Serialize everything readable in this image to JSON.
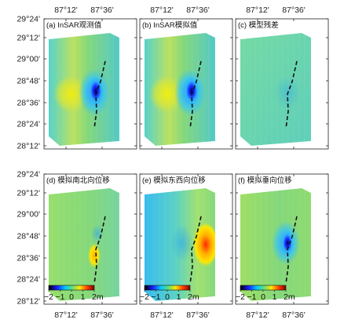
{
  "figure": {
    "x_ticks": [
      "87°12'",
      "87°36'"
    ],
    "y_ticks": [
      "29°24'",
      "29°12'",
      "29°00'",
      "28°48'",
      "28°36'",
      "28°24'",
      "28°12'"
    ],
    "panels": [
      {
        "id": "a",
        "title": "(a) InSAR观测值",
        "signal": "west_negative"
      },
      {
        "id": "b",
        "title": "(b) InSAR模拟值",
        "signal": "west_negative"
      },
      {
        "id": "c",
        "title": "(c) 模型残差",
        "signal": "residual"
      },
      {
        "id": "d",
        "title": "(d) 模拟南北向位移",
        "signal": "north_south"
      },
      {
        "id": "e",
        "title": "(e) 模拟东西向位移",
        "signal": "east_west"
      },
      {
        "id": "f",
        "title": "(f) 模拟垂向位移",
        "signal": "vertical"
      }
    ],
    "colorbar": {
      "tick_labels": [
        "−2",
        "−1",
        "0",
        "1",
        "2m"
      ],
      "range": [
        -2,
        2
      ],
      "colors": [
        "#000000",
        "#1a1aff",
        "#00c8ff",
        "#5fe07a",
        "#ffe600",
        "#ff3a00",
        "#7a0000"
      ]
    },
    "colors": {
      "background_field": "#6fd39a",
      "field_green": "#7fd676",
      "field_cyan": "#4fd0c8",
      "negative": "#1a2aff",
      "positive": "#ff3a00"
    }
  }
}
